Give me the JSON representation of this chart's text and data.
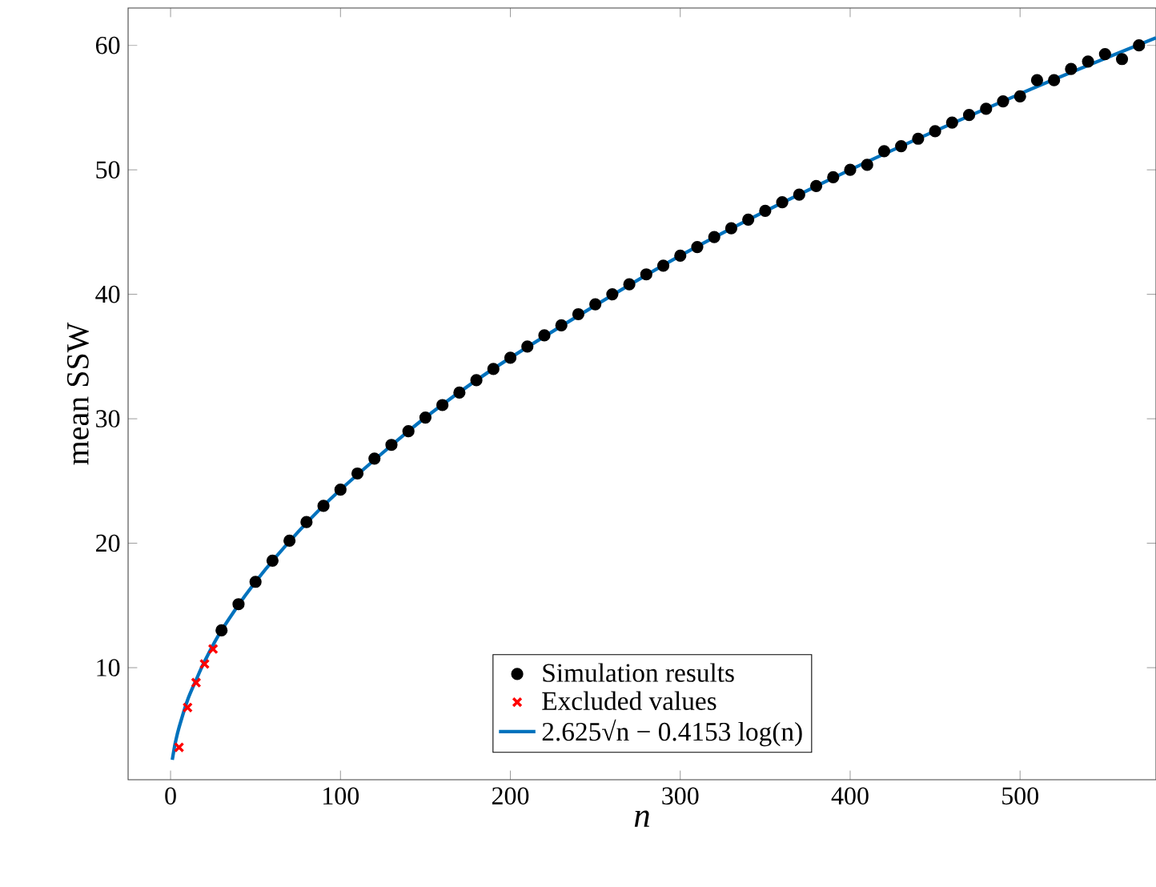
{
  "chart_data": {
    "type": "scatter",
    "xlabel": "n",
    "ylabel": "mean SSW",
    "xlim": [
      -25,
      580
    ],
    "ylim": [
      1,
      63
    ],
    "xticks": [
      0,
      100,
      200,
      300,
      400,
      500
    ],
    "yticks": [
      10,
      20,
      30,
      40,
      50,
      60
    ],
    "grid": false,
    "legend": "bottom",
    "series": [
      {
        "name": "Simulation results",
        "marker": "circle",
        "color": "#000000",
        "x": [
          30,
          40,
          50,
          60,
          70,
          80,
          90,
          100,
          110,
          120,
          130,
          140,
          150,
          160,
          170,
          180,
          190,
          200,
          210,
          220,
          230,
          240,
          250,
          260,
          270,
          280,
          290,
          300,
          310,
          320,
          330,
          340,
          350,
          360,
          370,
          380,
          390,
          400,
          410,
          420,
          430,
          440,
          450,
          460,
          470,
          480,
          490,
          500,
          510,
          520,
          530,
          540,
          550,
          560,
          570
        ],
        "values": [
          13.0,
          15.1,
          16.9,
          18.6,
          20.2,
          21.7,
          23.0,
          24.3,
          25.6,
          26.8,
          27.9,
          29.0,
          30.1,
          31.1,
          32.1,
          33.1,
          34.0,
          34.9,
          35.8,
          36.7,
          37.5,
          38.4,
          39.2,
          40.0,
          40.8,
          41.6,
          42.3,
          43.1,
          43.8,
          44.6,
          45.3,
          46.0,
          46.7,
          47.4,
          48.0,
          48.7,
          49.4,
          50.0,
          50.4,
          51.5,
          51.9,
          52.5,
          53.1,
          53.8,
          54.4,
          54.9,
          55.5,
          55.9,
          57.2,
          57.2,
          58.1,
          58.7,
          59.3,
          58.9,
          60.0
        ]
      },
      {
        "name": "Excluded values",
        "marker": "cross",
        "color": "#ff0000",
        "x": [
          5,
          10,
          15,
          20,
          25
        ],
        "values": [
          3.6,
          6.8,
          8.8,
          10.3,
          11.5
        ]
      },
      {
        "name": "2.625√n − 0.4153 log(n)",
        "type": "line",
        "marker": "none",
        "line_style": "solid",
        "color": "#0072bd",
        "x": [
          1,
          2,
          3,
          5,
          10,
          15,
          20,
          30,
          50,
          75,
          100,
          150,
          200,
          300,
          400,
          500,
          580
        ],
        "values": [
          2.6,
          3.4,
          4.1,
          5.2,
          7.4,
          9.0,
          10.5,
          13.0,
          16.9,
          20.9,
          24.3,
          30.1,
          34.9,
          43.1,
          50.0,
          56.1,
          60.6
        ]
      }
    ]
  }
}
